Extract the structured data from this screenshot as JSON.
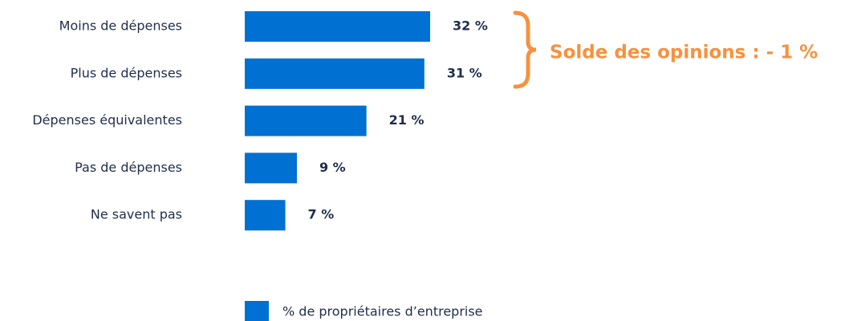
{
  "chart_data": {
    "type": "bar",
    "orientation": "horizontal",
    "categories": [
      "Moins de dépenses",
      "Plus de dépenses",
      "Dépenses équivalentes",
      "Pas de dépenses",
      "Ne savent pas"
    ],
    "series": [
      {
        "name": "% de propriétaires d’entreprise",
        "color": "#0070d2",
        "values": [
          32,
          31,
          21,
          9,
          7
        ],
        "value_labels": [
          "32 %",
          "31 %",
          "21 %",
          "9 %",
          "7 %"
        ]
      }
    ],
    "annotation": "Solde des opinions : - 1 %",
    "annotation_color": "#f7913d"
  }
}
